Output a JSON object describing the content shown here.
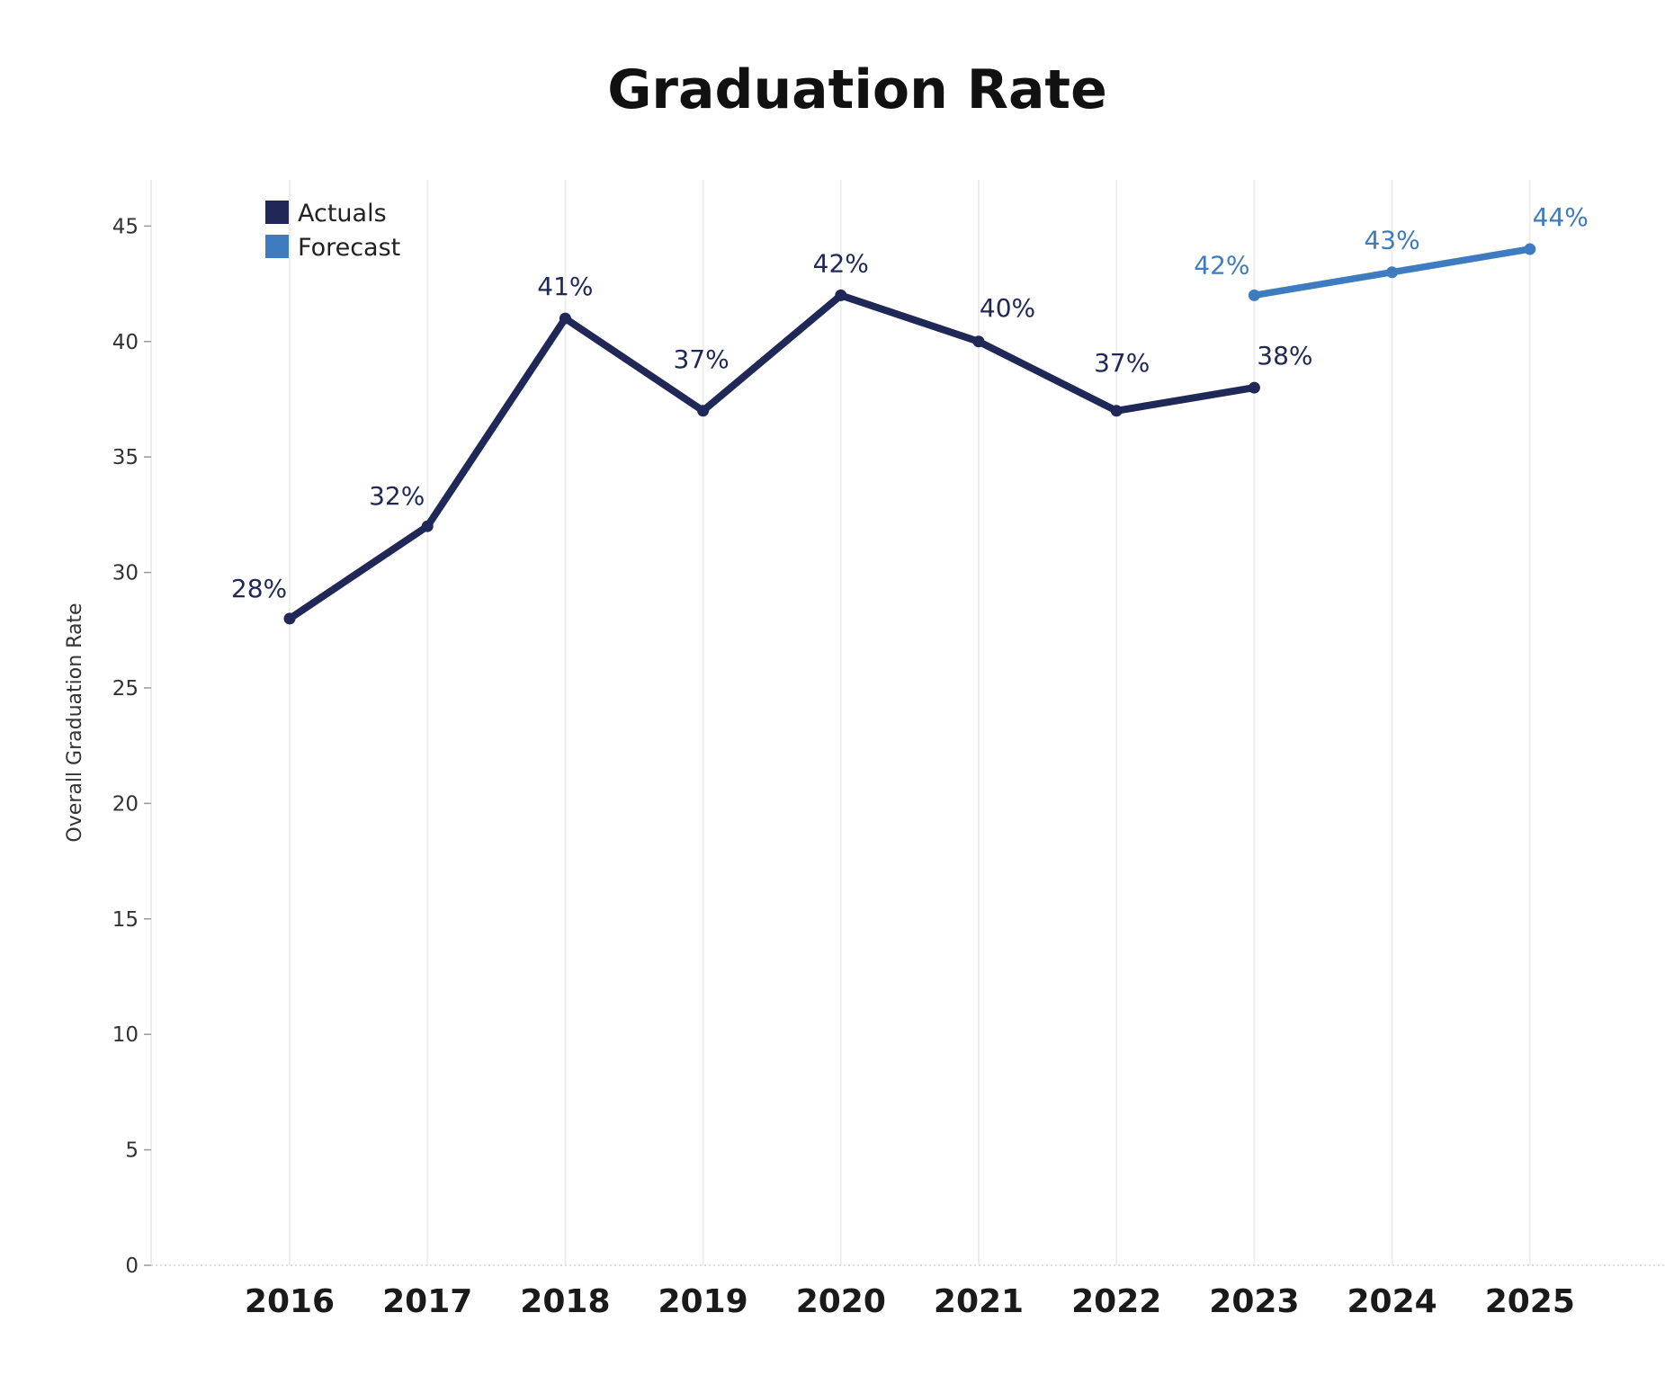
{
  "chart_data": {
    "type": "line",
    "title": "Graduation Rate",
    "xlabel": "",
    "ylabel": "Overall Graduation Rate",
    "ylim": [
      0,
      47
    ],
    "yticks": [
      0,
      5,
      10,
      15,
      20,
      25,
      30,
      35,
      40,
      45
    ],
    "categories": [
      "2016",
      "2017",
      "2018",
      "2019",
      "2020",
      "2021",
      "2022",
      "2023",
      "2024",
      "2025"
    ],
    "grid": "vertical",
    "legend_position": "top-left",
    "series": [
      {
        "name": "Actuals",
        "color": "#1f2857",
        "x": [
          "2016",
          "2017",
          "2018",
          "2019",
          "2020",
          "2021",
          "2022",
          "2023"
        ],
        "values": [
          28,
          32,
          41,
          37,
          42,
          40,
          37,
          38
        ],
        "labels": [
          "28%",
          "32%",
          "41%",
          "37%",
          "42%",
          "40%",
          "37%",
          "38%"
        ]
      },
      {
        "name": "Forecast",
        "color": "#3f7bbf",
        "x": [
          "2023",
          "2024",
          "2025"
        ],
        "values": [
          42,
          43,
          44
        ],
        "labels": [
          "42%",
          "43%",
          "44%"
        ]
      }
    ]
  }
}
